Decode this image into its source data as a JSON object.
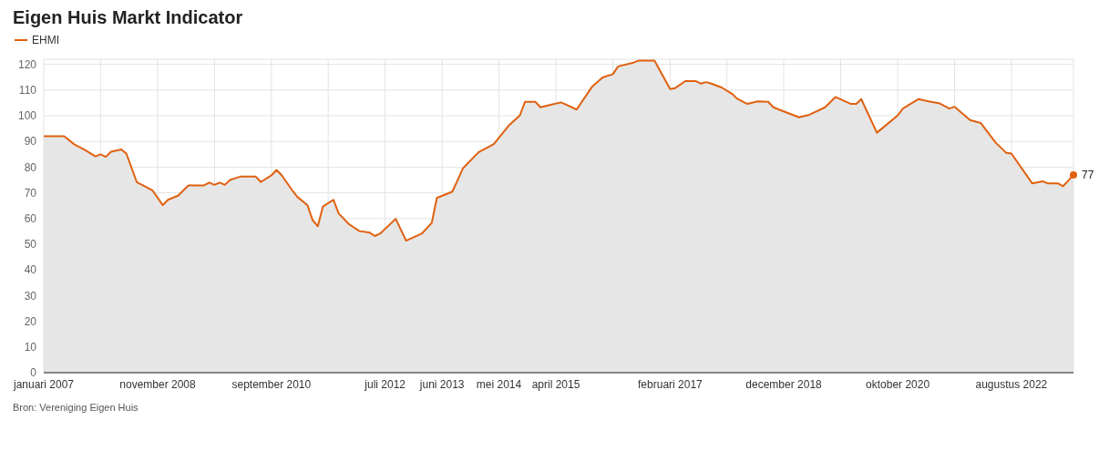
{
  "chart_data": {
    "type": "area",
    "title": "Eigen Huis Markt Indicator",
    "annotations": [
      "Bron: Vereniging Eigen Huis"
    ],
    "x": [
      "2007-01",
      "2007-05",
      "2007-07",
      "2007-09",
      "2007-11",
      "2007-12",
      "2008-01",
      "2008-02",
      "2008-04",
      "2008-05",
      "2008-07",
      "2008-10",
      "2008-12",
      "2009-01",
      "2009-03",
      "2009-05",
      "2009-08",
      "2009-09",
      "2009-10",
      "2009-11",
      "2009-12",
      "2010-01",
      "2010-03",
      "2010-06",
      "2010-07",
      "2010-09",
      "2010-10",
      "2010-11",
      "2011-01",
      "2011-02",
      "2011-04",
      "2011-05",
      "2011-06",
      "2011-07",
      "2011-09",
      "2011-10",
      "2011-12",
      "2012-02",
      "2012-04",
      "2012-05",
      "2012-06",
      "2012-09",
      "2012-11",
      "2013-02",
      "2013-04",
      "2013-05",
      "2013-08",
      "2013-10",
      "2014-01",
      "2014-04",
      "2014-07",
      "2014-09",
      "2014-10",
      "2014-12",
      "2015-01",
      "2015-03",
      "2015-05",
      "2015-06",
      "2015-08",
      "2015-11",
      "2016-01",
      "2016-03",
      "2016-04",
      "2016-07",
      "2016-08",
      "2016-11",
      "2017-02",
      "2017-03",
      "2017-05",
      "2017-07",
      "2017-08",
      "2017-09",
      "2017-10",
      "2017-12",
      "2018-02",
      "2018-03",
      "2018-05",
      "2018-07",
      "2018-09",
      "2018-10",
      "2018-12",
      "2019-03",
      "2019-05",
      "2019-08",
      "2019-10",
      "2020-01",
      "2020-02",
      "2020-03",
      "2020-06",
      "2020-10",
      "2020-11",
      "2021-02",
      "2021-04",
      "2021-06",
      "2021-08",
      "2021-09",
      "2021-12",
      "2022-02",
      "2022-05",
      "2022-07",
      "2022-08",
      "2022-12",
      "2023-02",
      "2023-03",
      "2023-05",
      "2023-06",
      "2023-07",
      "2023-08"
    ],
    "series": [
      {
        "name": "EHMI",
        "color": "#e0600f",
        "values": [
          92,
          92,
          88.8,
          86.7,
          84.2,
          85,
          84,
          86,
          86.9,
          85.3,
          74.2,
          71,
          65.2,
          67.3,
          68.9,
          72.9,
          72.9,
          74,
          73.1,
          74,
          73.1,
          75,
          76.3,
          76.3,
          74.2,
          76.8,
          78.9,
          76.8,
          71,
          68.4,
          65.2,
          59.4,
          57,
          64.7,
          67.3,
          62,
          57.8,
          55.1,
          54.5,
          53.2,
          54.1,
          59.9,
          51.4,
          54.1,
          58.3,
          68,
          70.5,
          79.5,
          85.8,
          89,
          96.4,
          100.1,
          105.4,
          105.4,
          103.3,
          104.3,
          105.2,
          104.3,
          102.4,
          111.4,
          114.9,
          116.2,
          119.2,
          120.7,
          121.5,
          121.5,
          110.4,
          110.7,
          113.5,
          113.5,
          112.5,
          113.1,
          112.5,
          111,
          108.5,
          106.7,
          104.6,
          105.6,
          105.4,
          103.3,
          101.7,
          99.4,
          100.4,
          103.3,
          107.3,
          104.6,
          104.6,
          106.5,
          93.4,
          100.1,
          102.8,
          106.5,
          105.6,
          104.9,
          102.8,
          103.5,
          98.3,
          97.2,
          89.5,
          85.6,
          85.3,
          73.7,
          74.5,
          73.7,
          73.7,
          72.6,
          74.7,
          77
        ],
        "value_labels": [
          null,
          null,
          null,
          null,
          null,
          null,
          null,
          null,
          null,
          null,
          null,
          null,
          null,
          null,
          null,
          null,
          null,
          null,
          null,
          null,
          null,
          null,
          null,
          null,
          null,
          null,
          null,
          null,
          null,
          null,
          null,
          null,
          null,
          null,
          null,
          null,
          null,
          null,
          null,
          null,
          null,
          null,
          null,
          null,
          null,
          null,
          null,
          null,
          null,
          null,
          null,
          null,
          null,
          null,
          null,
          null,
          null,
          null,
          null,
          null,
          null,
          null,
          null,
          null,
          null,
          null,
          null,
          null,
          null,
          null,
          null,
          null,
          null,
          null,
          null,
          null,
          null,
          null,
          null,
          null,
          null,
          null,
          null,
          null,
          null,
          null,
          null,
          null,
          null,
          null,
          null,
          null,
          null,
          null,
          null,
          null,
          null,
          null,
          null,
          null,
          null,
          null,
          null,
          null,
          null,
          null,
          null,
          "77"
        ]
      }
    ],
    "xlim": [
      "2007-01",
      "2023-08"
    ],
    "xticks": [
      {
        "value": "2007-01",
        "label": "januari 2007"
      },
      {
        "value": "2007-12",
        "label": null
      },
      {
        "value": "2008-11",
        "label": "november 2008"
      },
      {
        "value": "2009-10",
        "label": null
      },
      {
        "value": "2010-09",
        "label": "september 2010"
      },
      {
        "value": "2011-08",
        "label": null
      },
      {
        "value": "2012-07",
        "label": "juli 2012"
      },
      {
        "value": "2013-06",
        "label": "juni 2013"
      },
      {
        "value": "2014-05",
        "label": "mei 2014"
      },
      {
        "value": "2015-04",
        "label": "april 2015"
      },
      {
        "value": "2016-03",
        "label": null
      },
      {
        "value": "2017-02",
        "label": "februari 2017"
      },
      {
        "value": "2018-01",
        "label": null
      },
      {
        "value": "2018-12",
        "label": "december 2018"
      },
      {
        "value": "2019-11",
        "label": null
      },
      {
        "value": "2020-10",
        "label": "oktober 2020"
      },
      {
        "value": "2021-09",
        "label": null
      },
      {
        "value": "2022-08",
        "label": "augustus 2022"
      }
    ],
    "ylim": [
      0,
      122
    ],
    "yticks": [
      0,
      10,
      20,
      30,
      40,
      50,
      60,
      70,
      80,
      90,
      100,
      110,
      120
    ],
    "grid": true,
    "legend": "top left",
    "marker": "none",
    "line_style": "solid"
  }
}
